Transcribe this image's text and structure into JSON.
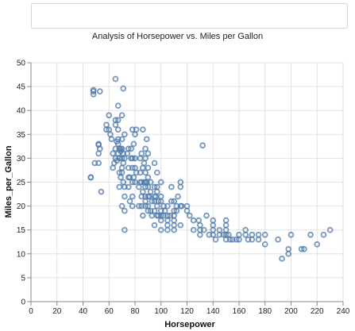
{
  "search": {
    "value": ""
  },
  "chart_data": {
    "type": "scatter",
    "title": "Analysis of Horsepower vs. Miles per Gallon",
    "xlabel": "Horsepower",
    "ylabel": "Miles_per_Gallon",
    "xlim": [
      0,
      240
    ],
    "ylim": [
      0,
      50
    ],
    "xticks": [
      "0",
      "20",
      "40",
      "60",
      "80",
      "100",
      "120",
      "140",
      "160",
      "180",
      "200",
      "220",
      "240"
    ],
    "yticks": [
      "0",
      "5",
      "10",
      "15",
      "20",
      "25",
      "30",
      "35",
      "40",
      "45",
      "50"
    ],
    "grid": true,
    "marker": "hollow-circle",
    "color": "#4c78a8",
    "points": [
      [
        46,
        26
      ],
      [
        46,
        26
      ],
      [
        48,
        43.4
      ],
      [
        48,
        44.3
      ],
      [
        48,
        44
      ],
      [
        49,
        29
      ],
      [
        52,
        29
      ],
      [
        52,
        32.8
      ],
      [
        52,
        33
      ],
      [
        52,
        31
      ],
      [
        53,
        32
      ],
      [
        53,
        44
      ],
      [
        54,
        23
      ],
      [
        58,
        36
      ],
      [
        58,
        37
      ],
      [
        60,
        36
      ],
      [
        60,
        39
      ],
      [
        61,
        35
      ],
      [
        62,
        34
      ],
      [
        63,
        28
      ],
      [
        63,
        31
      ],
      [
        64,
        29
      ],
      [
        65,
        32
      ],
      [
        65,
        30
      ],
      [
        65,
        37
      ],
      [
        65,
        38
      ],
      [
        65,
        46.6
      ],
      [
        66,
        33.5
      ],
      [
        66,
        29.5
      ],
      [
        67,
        31
      ],
      [
        67,
        38
      ],
      [
        67,
        36
      ],
      [
        67,
        34
      ],
      [
        67,
        33
      ],
      [
        67,
        41
      ],
      [
        68,
        32
      ],
      [
        68,
        30
      ],
      [
        68,
        27
      ],
      [
        68,
        24
      ],
      [
        69,
        32
      ],
      [
        69,
        31.5
      ],
      [
        69,
        26
      ],
      [
        70,
        32
      ],
      [
        70,
        28
      ],
      [
        70,
        30
      ],
      [
        70,
        34
      ],
      [
        70,
        27
      ],
      [
        70,
        39
      ],
      [
        70,
        20
      ],
      [
        71,
        25
      ],
      [
        71,
        31
      ],
      [
        71,
        29
      ],
      [
        71,
        44.6
      ],
      [
        72,
        35
      ],
      [
        72,
        22
      ],
      [
        72,
        30
      ],
      [
        72,
        15
      ],
      [
        72,
        19
      ],
      [
        72,
        24
      ],
      [
        74,
        31
      ],
      [
        75,
        26
      ],
      [
        75,
        28
      ],
      [
        75,
        24
      ],
      [
        75,
        32
      ],
      [
        76,
        21
      ],
      [
        76,
        26
      ],
      [
        77,
        32
      ],
      [
        77,
        30
      ],
      [
        78,
        25
      ],
      [
        78,
        28
      ],
      [
        78,
        30
      ],
      [
        78,
        20
      ],
      [
        78,
        22
      ],
      [
        78,
        36
      ],
      [
        79,
        26
      ],
      [
        79,
        33
      ],
      [
        80,
        28
      ],
      [
        80,
        25
      ],
      [
        80,
        30
      ],
      [
        80,
        35
      ],
      [
        81,
        27
      ],
      [
        81,
        36
      ],
      [
        83,
        20
      ],
      [
        83,
        24
      ],
      [
        84,
        27
      ],
      [
        84,
        25
      ],
      [
        84,
        30
      ],
      [
        85,
        20
      ],
      [
        85,
        22
      ],
      [
        85,
        25
      ],
      [
        85,
        31
      ],
      [
        86,
        28
      ],
      [
        86,
        23
      ],
      [
        86,
        36
      ],
      [
        86,
        18
      ],
      [
        87,
        29
      ],
      [
        87,
        25
      ],
      [
        88,
        20
      ],
      [
        88,
        22
      ],
      [
        88,
        25
      ],
      [
        88,
        24
      ],
      [
        88,
        27
      ],
      [
        88,
        30
      ],
      [
        88,
        32
      ],
      [
        88,
        21
      ],
      [
        89,
        34
      ],
      [
        89,
        25
      ],
      [
        90,
        19
      ],
      [
        90,
        22
      ],
      [
        90,
        28
      ],
      [
        90,
        20
      ],
      [
        90,
        24
      ],
      [
        90,
        31
      ],
      [
        90,
        26
      ],
      [
        91,
        22
      ],
      [
        92,
        23
      ],
      [
        92,
        19
      ],
      [
        92,
        25
      ],
      [
        93,
        21
      ],
      [
        93,
        18
      ],
      [
        95,
        19
      ],
      [
        95,
        24
      ],
      [
        95,
        21
      ],
      [
        95,
        29
      ],
      [
        95,
        22
      ],
      [
        95,
        16
      ],
      [
        96,
        22
      ],
      [
        97,
        23
      ],
      [
        97,
        20
      ],
      [
        97,
        27
      ],
      [
        97,
        18
      ],
      [
        97,
        24
      ],
      [
        98,
        18
      ],
      [
        98,
        21
      ],
      [
        100,
        18
      ],
      [
        100,
        21
      ],
      [
        100,
        22
      ],
      [
        100,
        19
      ],
      [
        100,
        17
      ],
      [
        100,
        15
      ],
      [
        100,
        25
      ],
      [
        102,
        18
      ],
      [
        102,
        20
      ],
      [
        103,
        19
      ],
      [
        105,
        18
      ],
      [
        105,
        15
      ],
      [
        105,
        17
      ],
      [
        105,
        16
      ],
      [
        105,
        20
      ],
      [
        107,
        18
      ],
      [
        108,
        21
      ],
      [
        108,
        24
      ],
      [
        110,
        18
      ],
      [
        110,
        17
      ],
      [
        110,
        19
      ],
      [
        110,
        16
      ],
      [
        110,
        21
      ],
      [
        110,
        15
      ],
      [
        112,
        19
      ],
      [
        112,
        20
      ],
      [
        113,
        22
      ],
      [
        115,
        20
      ],
      [
        115,
        16
      ],
      [
        115,
        24
      ],
      [
        115,
        25
      ],
      [
        116,
        20
      ],
      [
        120,
        20
      ],
      [
        120,
        19
      ],
      [
        122,
        18
      ],
      [
        125,
        17
      ],
      [
        125,
        15
      ],
      [
        129,
        17
      ],
      [
        130,
        16
      ],
      [
        130,
        15
      ],
      [
        130,
        14
      ],
      [
        132,
        32.7
      ],
      [
        133,
        15
      ],
      [
        135,
        18
      ],
      [
        137,
        14
      ],
      [
        140,
        16
      ],
      [
        140,
        14
      ],
      [
        140,
        15
      ],
      [
        140,
        17
      ],
      [
        142,
        13
      ],
      [
        145,
        14
      ],
      [
        145,
        15
      ],
      [
        148,
        14
      ],
      [
        150,
        14
      ],
      [
        150,
        13
      ],
      [
        150,
        15
      ],
      [
        150,
        16
      ],
      [
        150,
        17
      ],
      [
        152,
        14
      ],
      [
        153,
        13
      ],
      [
        155,
        13
      ],
      [
        158,
        13
      ],
      [
        160,
        14
      ],
      [
        160,
        13
      ],
      [
        165,
        14
      ],
      [
        165,
        15
      ],
      [
        167,
        13
      ],
      [
        170,
        13
      ],
      [
        170,
        14
      ],
      [
        175,
        13
      ],
      [
        175,
        14
      ],
      [
        180,
        12
      ],
      [
        180,
        14
      ],
      [
        190,
        13
      ],
      [
        193,
        9
      ],
      [
        198,
        10
      ],
      [
        198,
        11
      ],
      [
        200,
        14
      ],
      [
        208,
        11
      ],
      [
        210,
        11
      ],
      [
        215,
        14
      ],
      [
        220,
        12
      ],
      [
        225,
        14
      ],
      [
        230,
        15
      ]
    ]
  }
}
